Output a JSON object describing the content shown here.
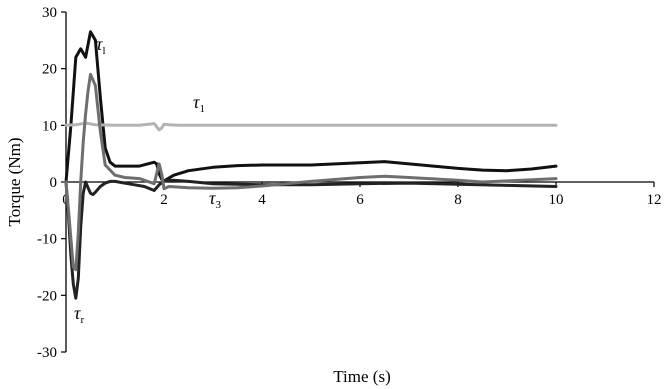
{
  "chart_data": {
    "type": "line",
    "title": "",
    "xlabel": "Time (s)",
    "ylabel": "Torque (Nm)",
    "xlim": [
      0,
      12
    ],
    "ylim": [
      -30,
      30
    ],
    "xticks": [
      0,
      2,
      4,
      6,
      8,
      10,
      12
    ],
    "yticks": [
      -30,
      -20,
      -10,
      0,
      10,
      20,
      30
    ],
    "xtick_labels": [
      "0",
      "2",
      "4",
      "6",
      "8",
      "10",
      "12"
    ],
    "ytick_labels": [
      "-30",
      "-20",
      "-10",
      "0",
      "10",
      "20",
      "30"
    ],
    "grid": false,
    "legend": "none",
    "series": [
      {
        "name": "τl",
        "label_main": "τ",
        "label_sub": "l",
        "color": "#111111",
        "x": [
          0,
          0.1,
          0.2,
          0.3,
          0.4,
          0.5,
          0.6,
          0.7,
          0.8,
          0.9,
          1.0,
          1.2,
          1.5,
          1.8,
          1.85,
          1.9,
          1.95,
          2.0,
          2.2,
          2.5,
          3.0,
          3.5,
          4.0,
          5.0,
          6.0,
          6.5,
          7.0,
          8.0,
          8.5,
          9.0,
          9.5,
          10.0
        ],
        "y": [
          0,
          10,
          22,
          23.5,
          22,
          26.5,
          25,
          15,
          6,
          3.5,
          2.8,
          2.8,
          2.8,
          3.5,
          3.2,
          1.5,
          0.5,
          0.2,
          1.2,
          2.0,
          2.6,
          2.9,
          3.0,
          3.0,
          3.4,
          3.6,
          3.2,
          2.4,
          2.1,
          2.0,
          2.3,
          2.8
        ]
      },
      {
        "name": "τ1",
        "label_main": "τ",
        "label_sub": "1",
        "color": "#b3b3b3",
        "x": [
          0,
          0.2,
          0.4,
          0.6,
          1.0,
          1.5,
          1.8,
          1.9,
          1.95,
          2.0,
          2.1,
          2.3,
          3.0,
          4.0,
          6.0,
          8.0,
          10.0
        ],
        "y": [
          10,
          10.1,
          10.4,
          10.1,
          10,
          10,
          10.3,
          9.2,
          9.5,
          10.2,
          10.1,
          10,
          10,
          10,
          10,
          10,
          10
        ]
      },
      {
        "name": "τr",
        "label_main": "τ",
        "label_sub": "r",
        "color": "#222222",
        "x": [
          0,
          0.05,
          0.1,
          0.15,
          0.2,
          0.25,
          0.3,
          0.35,
          0.4,
          0.45,
          0.5,
          0.55,
          0.6,
          0.7,
          0.8,
          0.9,
          1.0,
          1.2,
          1.4,
          1.6,
          1.8,
          1.9,
          2.0,
          2.2,
          2.5,
          3.0,
          4.0,
          5.0,
          6.0,
          7.0,
          8.0,
          9.0,
          10.0
        ],
        "y": [
          0,
          -6,
          -13,
          -18,
          -20.5,
          -17,
          -8,
          -2,
          0,
          -1,
          -2,
          -2.2,
          -1.8,
          -0.8,
          -0.2,
          0.1,
          0.1,
          -0.2,
          -0.5,
          -0.8,
          -1.5,
          -0.5,
          0.2,
          0.3,
          0.1,
          -0.3,
          -0.5,
          -0.5,
          -0.3,
          -0.2,
          -0.4,
          -0.6,
          -0.8
        ]
      },
      {
        "name": "τ3",
        "label_main": "τ",
        "label_sub": "3",
        "color": "#6e6e6e",
        "x": [
          0,
          0.05,
          0.1,
          0.15,
          0.2,
          0.25,
          0.3,
          0.35,
          0.4,
          0.45,
          0.5,
          0.6,
          0.7,
          0.8,
          1.0,
          1.2,
          1.5,
          1.8,
          1.85,
          1.9,
          1.95,
          2.0,
          2.1,
          2.5,
          3.0,
          3.5,
          4.0,
          5.0,
          6.0,
          6.5,
          7.0,
          8.0,
          8.5,
          9.0,
          10.0
        ],
        "y": [
          0,
          -5,
          -10,
          -15,
          -15.5,
          -9,
          0,
          7,
          12,
          16,
          19,
          17,
          9,
          3,
          1.2,
          0.8,
          0.6,
          -0.3,
          1.5,
          3.2,
          1.5,
          -1.2,
          -0.8,
          -1.0,
          -1.1,
          -1.0,
          -0.7,
          0.1,
          0.8,
          1.0,
          0.8,
          0.3,
          0.0,
          0.2,
          0.6
        ]
      }
    ]
  }
}
